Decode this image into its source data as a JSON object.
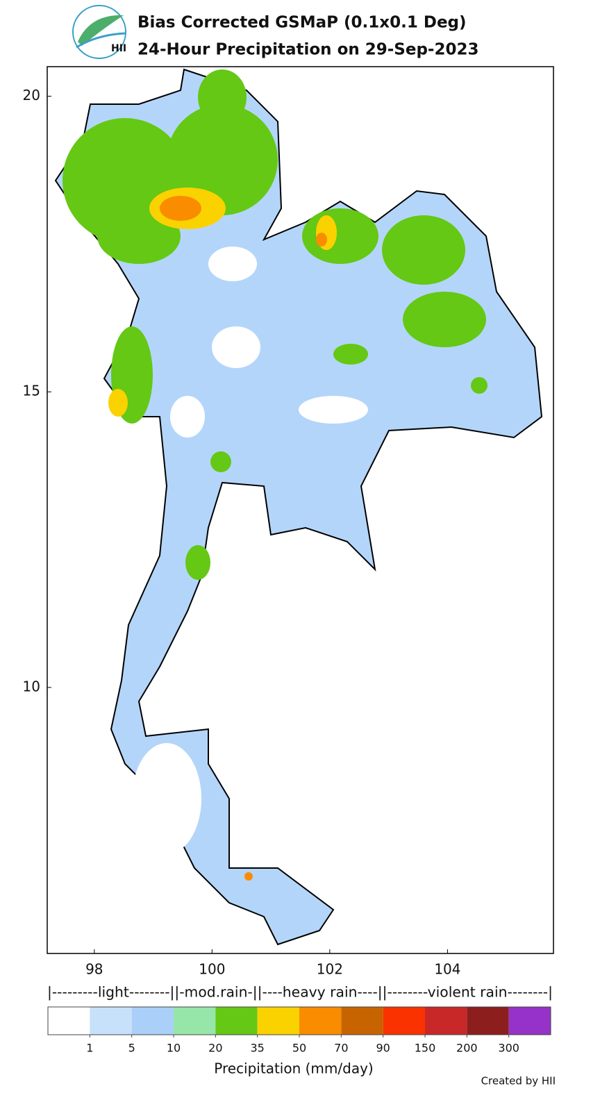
{
  "header": {
    "logo_text": "HII",
    "title_lines": [
      "Bias Corrected GSMaP (0.1x0.1 Deg)",
      "24-Hour Precipitation on 29-Sep-2023"
    ]
  },
  "map": {
    "lonlim": [
      97.2,
      105.8
    ],
    "latlim": [
      5.5,
      20.5
    ],
    "xticks": [
      98,
      100,
      102,
      104
    ],
    "yticks": [
      20,
      15,
      10
    ]
  },
  "legend": {
    "categories": "|---------light--------||-mod.rain-||----heavy rain----||--------violent rain--------|",
    "colors": [
      "#ffffff",
      "#c8e1fa",
      "#aad0fa",
      "#96e6aa",
      "#64c814",
      "#fad200",
      "#fa8c00",
      "#c86400",
      "#fa3200",
      "#c82828",
      "#8c1e1e",
      "#9632c8"
    ],
    "ticks": [
      1,
      5,
      10,
      20,
      35,
      50,
      70,
      90,
      150,
      200,
      300
    ],
    "label": "Precipitation (mm/day)"
  },
  "footer": {
    "credit": "Created by HII"
  }
}
